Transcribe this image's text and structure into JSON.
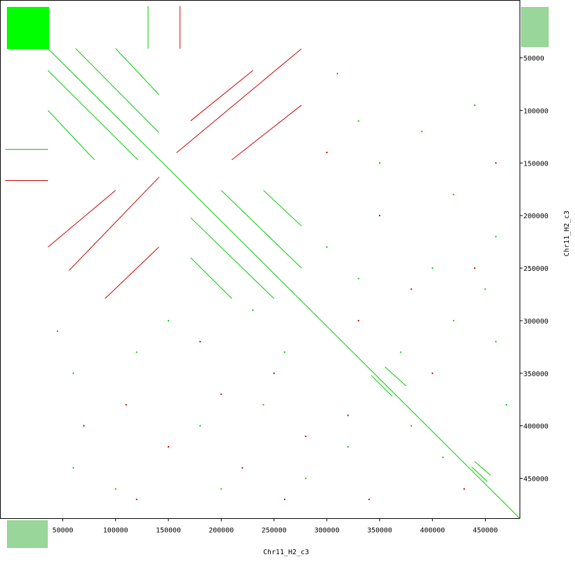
{
  "chart_data": {
    "type": "dotplot",
    "x_label": "Chr11_H2_c3",
    "y_label": "Chr11_H2_c3",
    "xlim": [
      -9100,
      482800
    ],
    "ylim": [
      -4700,
      488200
    ],
    "xticks": [
      50000,
      100000,
      150000,
      200000,
      250000,
      300000,
      350000,
      400000,
      450000
    ],
    "yticks": [
      50000,
      100000,
      150000,
      200000,
      250000,
      300000,
      350000,
      400000,
      450000
    ],
    "series": [
      {
        "color": "#00cc00",
        "segments": [
          [
            36200,
            41400,
            482800,
            488200
          ],
          [
            36000,
            62000,
            121000,
            147000
          ],
          [
            62000,
            41000,
            141000,
            121000
          ],
          [
            36000,
            100000,
            80000,
            147000
          ],
          [
            100000,
            41000,
            141000,
            85000
          ],
          [
            171000,
            202000,
            250000,
            279000
          ],
          [
            200000,
            176000,
            276000,
            250000
          ],
          [
            171000,
            240000,
            210000,
            279000
          ],
          [
            240000,
            176000,
            276000,
            210000
          ],
          [
            342000,
            352000,
            362000,
            372000
          ],
          [
            355000,
            344000,
            375000,
            362000
          ],
          [
            437000,
            439000,
            452000,
            453000
          ],
          [
            440000,
            434000,
            455000,
            447000
          ],
          [
            -4500,
            137000,
            36000,
            137000
          ],
          [
            130800,
            600,
            130800,
            41400
          ]
        ],
        "points": [
          [
            310000,
            65000
          ],
          [
            330000,
            110000
          ],
          [
            350000,
            150000
          ],
          [
            390000,
            120000
          ],
          [
            420000,
            180000
          ],
          [
            440000,
            95000
          ],
          [
            460000,
            220000
          ],
          [
            300000,
            230000
          ],
          [
            330000,
            260000
          ],
          [
            400000,
            250000
          ],
          [
            45000,
            310000
          ],
          [
            60000,
            350000
          ],
          [
            120000,
            330000
          ],
          [
            180000,
            400000
          ],
          [
            240000,
            380000
          ],
          [
            280000,
            450000
          ],
          [
            60000,
            440000
          ],
          [
            100000,
            460000
          ],
          [
            200000,
            460000
          ],
          [
            380000,
            400000
          ],
          [
            410000,
            430000
          ],
          [
            420000,
            300000
          ],
          [
            460000,
            320000
          ],
          [
            470000,
            380000
          ],
          [
            320000,
            420000
          ],
          [
            260000,
            330000
          ],
          [
            150000,
            300000
          ],
          [
            230000,
            290000
          ],
          [
            370000,
            330000
          ],
          [
            450000,
            270000
          ]
        ]
      },
      {
        "color": "#cc0000",
        "segments": [
          [
            157700,
            140300,
            275900,
            41400
          ],
          [
            55900,
            252300,
            141300,
            163300
          ],
          [
            171000,
            110000,
            230000,
            62000
          ],
          [
            210000,
            147000,
            276000,
            95000
          ],
          [
            36000,
            230000,
            100000,
            176000
          ],
          [
            90000,
            279000,
            141000,
            230000
          ],
          [
            -4500,
            166600,
            36000,
            166600
          ],
          [
            161000,
            600,
            161000,
            41400
          ]
        ],
        "points": [
          [
            320000,
            390000
          ],
          [
            340000,
            470000
          ],
          [
            150000,
            420000
          ],
          [
            220000,
            440000
          ],
          [
            260000,
            470000
          ],
          [
            200000,
            370000
          ],
          [
            110000,
            380000
          ],
          [
            400000,
            350000
          ],
          [
            430000,
            460000
          ],
          [
            300000,
            140000
          ],
          [
            350000,
            200000
          ],
          [
            460000,
            150000
          ],
          [
            180000,
            320000
          ],
          [
            250000,
            350000
          ],
          [
            70000,
            400000
          ],
          [
            380000,
            270000
          ],
          [
            440000,
            250000
          ],
          [
            330000,
            300000
          ],
          [
            280000,
            410000
          ],
          [
            120000,
            470000
          ]
        ]
      }
    ]
  }
}
